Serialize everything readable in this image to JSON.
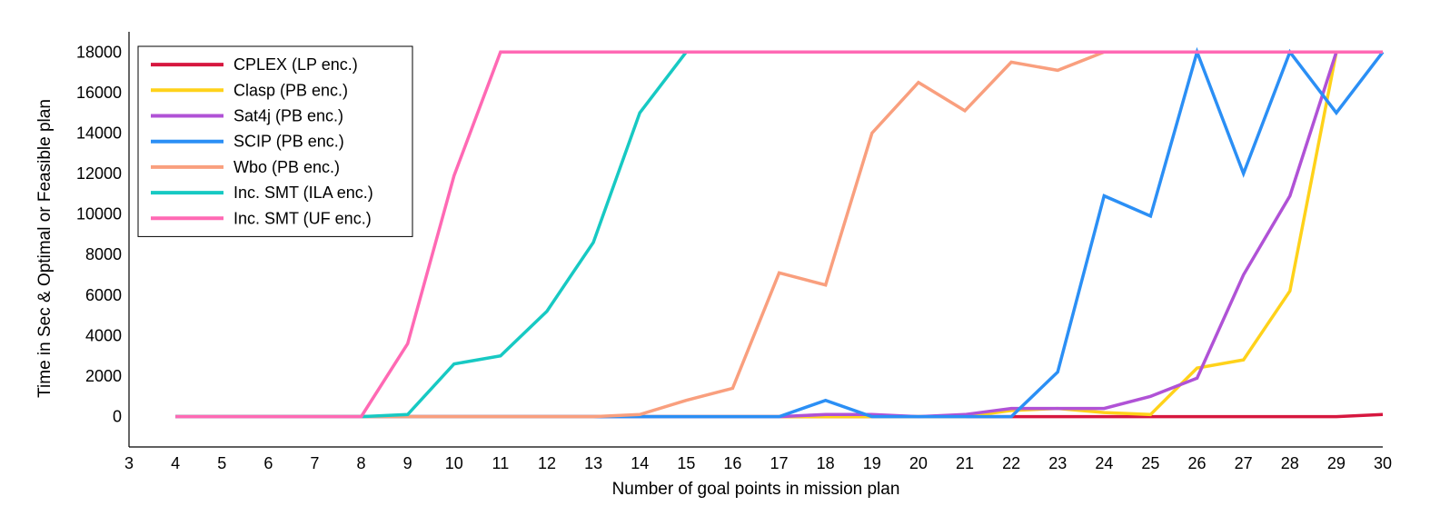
{
  "chart_data": {
    "type": "line",
    "title": "",
    "xlabel": "Number of goal points in mission plan",
    "ylabel": "Time in Sec & Optimal or Feasible plan",
    "xlim": [
      3,
      30
    ],
    "ylim": [
      -1500,
      19000
    ],
    "xticks": [
      3,
      4,
      5,
      6,
      7,
      8,
      9,
      10,
      11,
      12,
      13,
      14,
      15,
      16,
      17,
      18,
      19,
      20,
      21,
      22,
      23,
      24,
      25,
      26,
      27,
      28,
      29,
      30
    ],
    "yticks": [
      0,
      2000,
      4000,
      6000,
      8000,
      10000,
      12000,
      14000,
      16000,
      18000
    ],
    "grid": false,
    "legend_position": "top-left",
    "series": [
      {
        "name": "CPLEX (LP enc.)",
        "color": "#d6173f",
        "x": [
          4,
          5,
          6,
          7,
          8,
          9,
          10,
          11,
          12,
          13,
          14,
          15,
          16,
          17,
          18,
          19,
          20,
          21,
          22,
          23,
          24,
          25,
          26,
          27,
          28,
          29,
          30
        ],
        "y": [
          0,
          0,
          0,
          0,
          0,
          0,
          0,
          0,
          0,
          0,
          0,
          0,
          0,
          0,
          0,
          0,
          0,
          0,
          0,
          0,
          0,
          0,
          0,
          0,
          0,
          0,
          100
        ]
      },
      {
        "name": "Clasp (PB enc.)",
        "color": "#ffd21a",
        "x": [
          4,
          5,
          6,
          7,
          8,
          9,
          10,
          11,
          12,
          13,
          14,
          15,
          16,
          17,
          18,
          19,
          20,
          21,
          22,
          23,
          24,
          25,
          26,
          27,
          28,
          29,
          30
        ],
        "y": [
          0,
          0,
          0,
          0,
          0,
          0,
          0,
          0,
          0,
          0,
          0,
          0,
          0,
          0,
          0,
          0,
          0,
          0,
          300,
          400,
          200,
          100,
          2400,
          2800,
          6200,
          18000,
          18000
        ]
      },
      {
        "name": "Sat4j (PB enc.)",
        "color": "#b052d6",
        "x": [
          4,
          5,
          6,
          7,
          8,
          9,
          10,
          11,
          12,
          13,
          14,
          15,
          16,
          17,
          18,
          19,
          20,
          21,
          22,
          23,
          24,
          25,
          26,
          27,
          28,
          29,
          30
        ],
        "y": [
          0,
          0,
          0,
          0,
          0,
          0,
          0,
          0,
          0,
          0,
          0,
          0,
          0,
          0,
          100,
          100,
          0,
          100,
          400,
          400,
          400,
          1000,
          1900,
          7000,
          10900,
          18000,
          18000
        ]
      },
      {
        "name": "SCIP (PB enc.)",
        "color": "#2b8ff5",
        "x": [
          4,
          5,
          6,
          7,
          8,
          9,
          10,
          11,
          12,
          13,
          14,
          15,
          16,
          17,
          18,
          19,
          20,
          21,
          22,
          23,
          24,
          25,
          26,
          27,
          28,
          29,
          30
        ],
        "y": [
          0,
          0,
          0,
          0,
          0,
          0,
          0,
          0,
          0,
          0,
          0,
          0,
          0,
          0,
          800,
          0,
          0,
          0,
          0,
          2200,
          10900,
          9900,
          18000,
          12000,
          18000,
          15000,
          18000
        ]
      },
      {
        "name": "Wbo (PB enc.)",
        "color": "#f99f7e",
        "x": [
          4,
          5,
          6,
          7,
          8,
          9,
          10,
          11,
          12,
          13,
          14,
          15,
          16,
          17,
          18,
          19,
          20,
          21,
          22,
          23,
          24,
          25,
          26,
          27,
          28,
          29,
          30
        ],
        "y": [
          0,
          0,
          0,
          0,
          0,
          0,
          0,
          0,
          0,
          0,
          100,
          800,
          1400,
          7100,
          6500,
          14000,
          16500,
          15100,
          17500,
          17100,
          18000,
          18000,
          18000,
          18000,
          18000,
          18000,
          18000
        ]
      },
      {
        "name": "Inc. SMT (ILA enc.)",
        "color": "#17c9c3",
        "x": [
          4,
          5,
          6,
          7,
          8,
          9,
          10,
          11,
          12,
          13,
          14,
          15,
          16,
          17,
          18,
          19,
          20,
          21,
          22,
          23,
          24,
          25,
          26,
          27,
          28,
          29,
          30
        ],
        "y": [
          0,
          0,
          0,
          0,
          0,
          100,
          2600,
          3000,
          5200,
          8600,
          15000,
          18000,
          18000,
          18000,
          18000,
          18000,
          18000,
          18000,
          18000,
          18000,
          18000,
          18000,
          18000,
          18000,
          18000,
          18000,
          18000
        ]
      },
      {
        "name": "Inc. SMT (UF enc.)",
        "color": "#ff69b4",
        "x": [
          4,
          5,
          6,
          7,
          8,
          9,
          10,
          11,
          12,
          13,
          14,
          15,
          16,
          17,
          18,
          19,
          20,
          21,
          22,
          23,
          24,
          25,
          26,
          27,
          28,
          29,
          30
        ],
        "y": [
          0,
          0,
          0,
          0,
          0,
          3600,
          11900,
          18000,
          18000,
          18000,
          18000,
          18000,
          18000,
          18000,
          18000,
          18000,
          18000,
          18000,
          18000,
          18000,
          18000,
          18000,
          18000,
          18000,
          18000,
          18000,
          18000
        ]
      }
    ]
  }
}
